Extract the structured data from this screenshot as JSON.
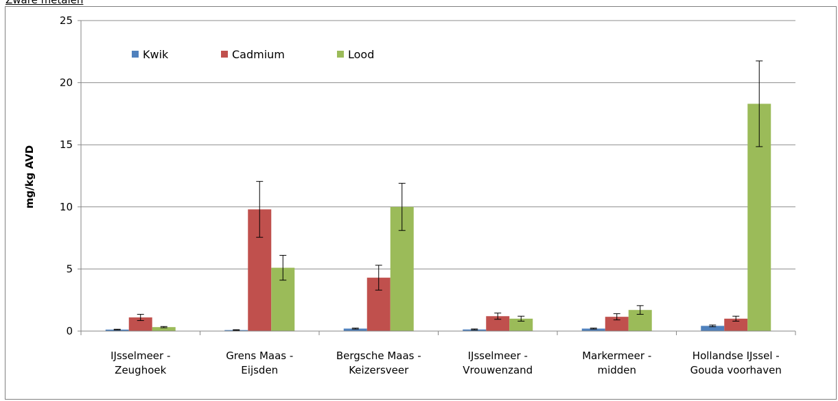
{
  "header": {
    "title": "Zware metalen"
  },
  "chart_data": {
    "type": "bar",
    "title": "",
    "ylabel": "mg/kg AVD",
    "xlabel": "",
    "ylim": [
      0,
      25
    ],
    "yticks": [
      0,
      5,
      10,
      15,
      20,
      25
    ],
    "grid": true,
    "legend_position": "top-left",
    "categories": [
      [
        "IJsselmeer -",
        "Zeughoek"
      ],
      [
        "Grens Maas -",
        "Eijsden"
      ],
      [
        "Bergsche Maas -",
        "Keizersveer"
      ],
      [
        "IJsselmeer -",
        "Vrouwenzand"
      ],
      [
        "Markermeer -",
        "midden"
      ],
      [
        "Hollandse IJssel -",
        "Gouda voorhaven"
      ]
    ],
    "series": [
      {
        "name": "Kwik",
        "color": "#4f81bd",
        "values": [
          0.12,
          0.08,
          0.2,
          0.13,
          0.2,
          0.42
        ],
        "errors": [
          0.03,
          0.03,
          0.04,
          0.04,
          0.04,
          0.07
        ]
      },
      {
        "name": "Cadmium",
        "color": "#c0504d",
        "values": [
          1.1,
          9.8,
          4.3,
          1.2,
          1.15,
          1.0
        ],
        "errors": [
          0.25,
          2.25,
          1.0,
          0.25,
          0.25,
          0.2
        ]
      },
      {
        "name": "Lood",
        "color": "#9bbb59",
        "values": [
          0.32,
          5.1,
          10.0,
          1.0,
          1.7,
          18.3
        ],
        "errors": [
          0.05,
          1.0,
          1.9,
          0.2,
          0.35,
          3.45
        ]
      }
    ]
  }
}
